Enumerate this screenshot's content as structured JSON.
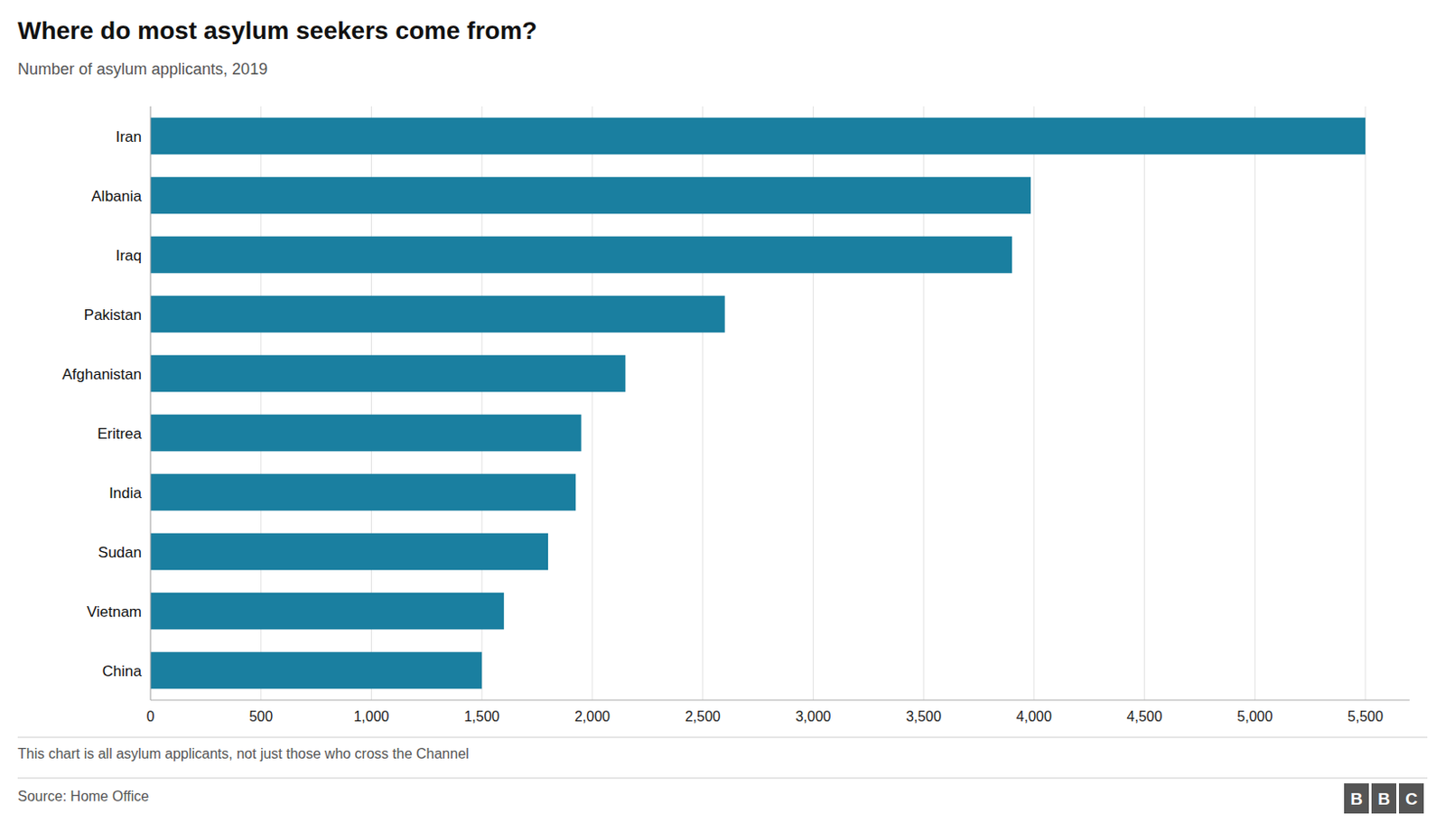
{
  "chart_data": {
    "type": "bar",
    "orientation": "horizontal",
    "title": "Where do most asylum seekers come from?",
    "subtitle": "Number of asylum applicants, 2019",
    "footnote": "This chart is all asylum applicants, not just those who cross the Channel",
    "source": "Source: Home Office",
    "logo": "BBC",
    "categories": [
      "Iran",
      "Albania",
      "Iraq",
      "Pakistan",
      "Afghanistan",
      "Eritrea",
      "India",
      "Sudan",
      "Vietnam",
      "China"
    ],
    "values": [
      5500,
      3985,
      3900,
      2600,
      2150,
      1950,
      1925,
      1800,
      1600,
      1500
    ],
    "color": "#1a7fa0",
    "xlim": [
      0,
      5700
    ],
    "xticks": [
      0,
      500,
      {
        "value": 1000,
        "label": "1,000"
      },
      {
        "value": 1500,
        "label": "1,500"
      },
      {
        "value": 2000,
        "label": "2,000"
      },
      {
        "value": 2500,
        "label": "2,500"
      },
      {
        "value": 3000,
        "label": "3,000"
      },
      {
        "value": 3500,
        "label": "3,500"
      },
      {
        "value": 4000,
        "label": "4,000"
      },
      {
        "value": 4500,
        "label": "4,500"
      },
      {
        "value": 5000,
        "label": "5,000"
      },
      {
        "value": 5500,
        "label": "5,500"
      }
    ],
    "grid": true
  }
}
